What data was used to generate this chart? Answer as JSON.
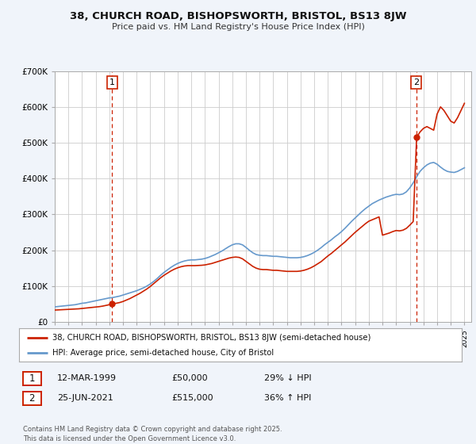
{
  "title": "38, CHURCH ROAD, BISHOPSWORTH, BRISTOL, BS13 8JW",
  "subtitle": "Price paid vs. HM Land Registry's House Price Index (HPI)",
  "bg_color": "#f0f4fa",
  "plot_bg_color": "#ffffff",
  "grid_color": "#cccccc",
  "hpi_color": "#6699cc",
  "price_color": "#cc2200",
  "dashed_color": "#cc2200",
  "ylim": [
    0,
    700000
  ],
  "yticks": [
    0,
    100000,
    200000,
    300000,
    400000,
    500000,
    600000,
    700000
  ],
  "ytick_labels": [
    "£0",
    "£100K",
    "£200K",
    "£300K",
    "£400K",
    "£500K",
    "£600K",
    "£700K"
  ],
  "xlim_start": 1995.0,
  "xlim_end": 2025.5,
  "sale1_x": 1999.2,
  "sale1_y": 50000,
  "sale2_x": 2021.48,
  "sale2_y": 515000,
  "legend_label1": "38, CHURCH ROAD, BISHOPSWORTH, BRISTOL, BS13 8JW (semi-detached house)",
  "legend_label2": "HPI: Average price, semi-detached house, City of Bristol",
  "annotation1_label": "1",
  "annotation2_label": "2",
  "table_row1": [
    "1",
    "12-MAR-1999",
    "£50,000",
    "29% ↓ HPI"
  ],
  "table_row2": [
    "2",
    "25-JUN-2021",
    "£515,000",
    "36% ↑ HPI"
  ],
  "footer": "Contains HM Land Registry data © Crown copyright and database right 2025.\nThis data is licensed under the Open Government Licence v3.0.",
  "hpi_x": [
    1995.0,
    1995.25,
    1995.5,
    1995.75,
    1996.0,
    1996.25,
    1996.5,
    1996.75,
    1997.0,
    1997.25,
    1997.5,
    1997.75,
    1998.0,
    1998.25,
    1998.5,
    1998.75,
    1999.0,
    1999.25,
    1999.5,
    1999.75,
    2000.0,
    2000.25,
    2000.5,
    2000.75,
    2001.0,
    2001.25,
    2001.5,
    2001.75,
    2002.0,
    2002.25,
    2002.5,
    2002.75,
    2003.0,
    2003.25,
    2003.5,
    2003.75,
    2004.0,
    2004.25,
    2004.5,
    2004.75,
    2005.0,
    2005.25,
    2005.5,
    2005.75,
    2006.0,
    2006.25,
    2006.5,
    2006.75,
    2007.0,
    2007.25,
    2007.5,
    2007.75,
    2008.0,
    2008.25,
    2008.5,
    2008.75,
    2009.0,
    2009.25,
    2009.5,
    2009.75,
    2010.0,
    2010.25,
    2010.5,
    2010.75,
    2011.0,
    2011.25,
    2011.5,
    2011.75,
    2012.0,
    2012.25,
    2012.5,
    2012.75,
    2013.0,
    2013.25,
    2013.5,
    2013.75,
    2014.0,
    2014.25,
    2014.5,
    2014.75,
    2015.0,
    2015.25,
    2015.5,
    2015.75,
    2016.0,
    2016.25,
    2016.5,
    2016.75,
    2017.0,
    2017.25,
    2017.5,
    2017.75,
    2018.0,
    2018.25,
    2018.5,
    2018.75,
    2019.0,
    2019.25,
    2019.5,
    2019.75,
    2020.0,
    2020.25,
    2020.5,
    2020.75,
    2021.0,
    2021.25,
    2021.5,
    2021.75,
    2022.0,
    2022.25,
    2022.5,
    2022.75,
    2023.0,
    2023.25,
    2023.5,
    2023.75,
    2024.0,
    2024.25,
    2024.5,
    2024.75,
    2025.0
  ],
  "hpi_y": [
    42000,
    43000,
    44000,
    45000,
    46000,
    47000,
    48000,
    50000,
    52000,
    53000,
    55000,
    57000,
    59000,
    61000,
    63000,
    65000,
    67000,
    68000,
    70000,
    72000,
    75000,
    78000,
    81000,
    84000,
    87000,
    91000,
    95000,
    100000,
    106000,
    113000,
    121000,
    130000,
    138000,
    145000,
    152000,
    158000,
    163000,
    167000,
    170000,
    172000,
    173000,
    173000,
    174000,
    175000,
    177000,
    180000,
    184000,
    188000,
    193000,
    198000,
    204000,
    210000,
    215000,
    218000,
    218000,
    215000,
    208000,
    200000,
    193000,
    188000,
    186000,
    185000,
    185000,
    184000,
    183000,
    183000,
    182000,
    181000,
    180000,
    179000,
    179000,
    179000,
    180000,
    182000,
    185000,
    189000,
    194000,
    200000,
    207000,
    215000,
    222000,
    229000,
    237000,
    244000,
    252000,
    261000,
    271000,
    281000,
    290000,
    299000,
    308000,
    316000,
    323000,
    330000,
    335000,
    340000,
    344000,
    348000,
    351000,
    354000,
    356000,
    355000,
    357000,
    363000,
    374000,
    388000,
    405000,
    420000,
    430000,
    438000,
    443000,
    445000,
    440000,
    432000,
    425000,
    420000,
    418000,
    417000,
    420000,
    425000,
    430000
  ],
  "price_x": [
    1995.0,
    1995.25,
    1995.5,
    1995.75,
    1996.0,
    1996.25,
    1996.5,
    1996.75,
    1997.0,
    1997.25,
    1997.5,
    1997.75,
    1998.0,
    1998.25,
    1998.5,
    1998.75,
    1999.0,
    1999.25,
    1999.5,
    1999.75,
    2000.0,
    2000.25,
    2000.5,
    2000.75,
    2001.0,
    2001.25,
    2001.5,
    2001.75,
    2002.0,
    2002.25,
    2002.5,
    2002.75,
    2003.0,
    2003.25,
    2003.5,
    2003.75,
    2004.0,
    2004.25,
    2004.5,
    2004.75,
    2005.0,
    2005.25,
    2005.5,
    2005.75,
    2006.0,
    2006.25,
    2006.5,
    2006.75,
    2007.0,
    2007.25,
    2007.5,
    2007.75,
    2008.0,
    2008.25,
    2008.5,
    2008.75,
    2009.0,
    2009.25,
    2009.5,
    2009.75,
    2010.0,
    2010.25,
    2010.5,
    2010.75,
    2011.0,
    2011.25,
    2011.5,
    2011.75,
    2012.0,
    2012.25,
    2012.5,
    2012.75,
    2013.0,
    2013.25,
    2013.5,
    2013.75,
    2014.0,
    2014.25,
    2014.5,
    2014.75,
    2015.0,
    2015.25,
    2015.5,
    2015.75,
    2016.0,
    2016.25,
    2016.5,
    2016.75,
    2017.0,
    2017.25,
    2017.5,
    2017.75,
    2018.0,
    2018.25,
    2018.5,
    2018.75,
    2019.0,
    2019.25,
    2019.5,
    2019.75,
    2020.0,
    2020.25,
    2020.5,
    2020.75,
    2021.0,
    2021.25,
    2021.5,
    2021.75,
    2022.0,
    2022.25,
    2022.5,
    2022.75,
    2023.0,
    2023.25,
    2023.5,
    2023.75,
    2024.0,
    2024.25,
    2024.5,
    2024.75,
    2025.0
  ],
  "price_y": [
    33000,
    33500,
    34000,
    34500,
    35000,
    35500,
    36000,
    36500,
    37500,
    38500,
    39500,
    40500,
    41500,
    42500,
    44000,
    46000,
    48000,
    50000,
    52000,
    54000,
    57000,
    61000,
    65000,
    70000,
    75000,
    80000,
    86000,
    92000,
    99000,
    107000,
    115000,
    123000,
    130000,
    136000,
    142000,
    147000,
    151000,
    154000,
    156000,
    157000,
    157000,
    157000,
    157500,
    158000,
    159000,
    161000,
    163000,
    166000,
    169000,
    172000,
    175000,
    178000,
    180000,
    181000,
    180000,
    176000,
    169000,
    162000,
    155000,
    150000,
    147000,
    146000,
    146000,
    145000,
    144000,
    144000,
    143000,
    142000,
    141000,
    141000,
    141000,
    141000,
    142000,
    144000,
    147000,
    151000,
    156000,
    162000,
    168000,
    176000,
    184000,
    191000,
    199000,
    207000,
    215000,
    223000,
    232000,
    241000,
    250000,
    258000,
    266000,
    274000,
    281000,
    285000,
    289000,
    293000,
    242000,
    245000,
    248000,
    252000,
    255000,
    254000,
    256000,
    261000,
    270000,
    280000,
    515000,
    530000,
    540000,
    545000,
    540000,
    535000,
    580000,
    600000,
    590000,
    575000,
    560000,
    555000,
    570000,
    590000,
    610000
  ]
}
